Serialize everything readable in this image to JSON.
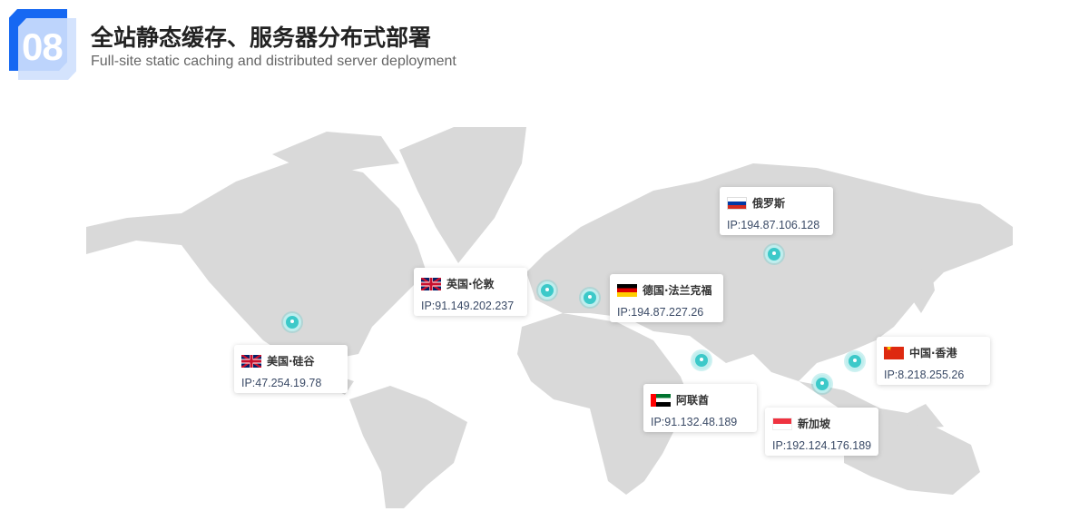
{
  "header": {
    "number": "08",
    "title": "全站静态缓存、服务器分布式部署",
    "subtitle": "Full-site static caching and distributed server deployment"
  },
  "colors": {
    "accent": "#1668f2",
    "pin": "#3cc9c9",
    "land": "#d9d9d9"
  },
  "locations": [
    {
      "name": "俄罗斯",
      "ip": "IP:194.87.106.128",
      "flag": "russia-flag"
    },
    {
      "name": "英国·伦敦",
      "ip": "IP:91.149.202.237",
      "flag": "uk-flag"
    },
    {
      "name": "德国·法兰克福",
      "ip": "IP:194.87.227.26",
      "flag": "germany-flag"
    },
    {
      "name": "美国·硅谷",
      "ip": "IP:47.254.19.78",
      "flag": "uk-flag"
    },
    {
      "name": "阿联酋",
      "ip": "IP:91.132.48.189",
      "flag": "uae-flag"
    },
    {
      "name": "新加坡",
      "ip": "IP:192.124.176.189",
      "flag": "singapore-flag"
    },
    {
      "name": "中国·香港",
      "ip": "IP:8.218.255.26",
      "flag": "china-flag"
    }
  ]
}
